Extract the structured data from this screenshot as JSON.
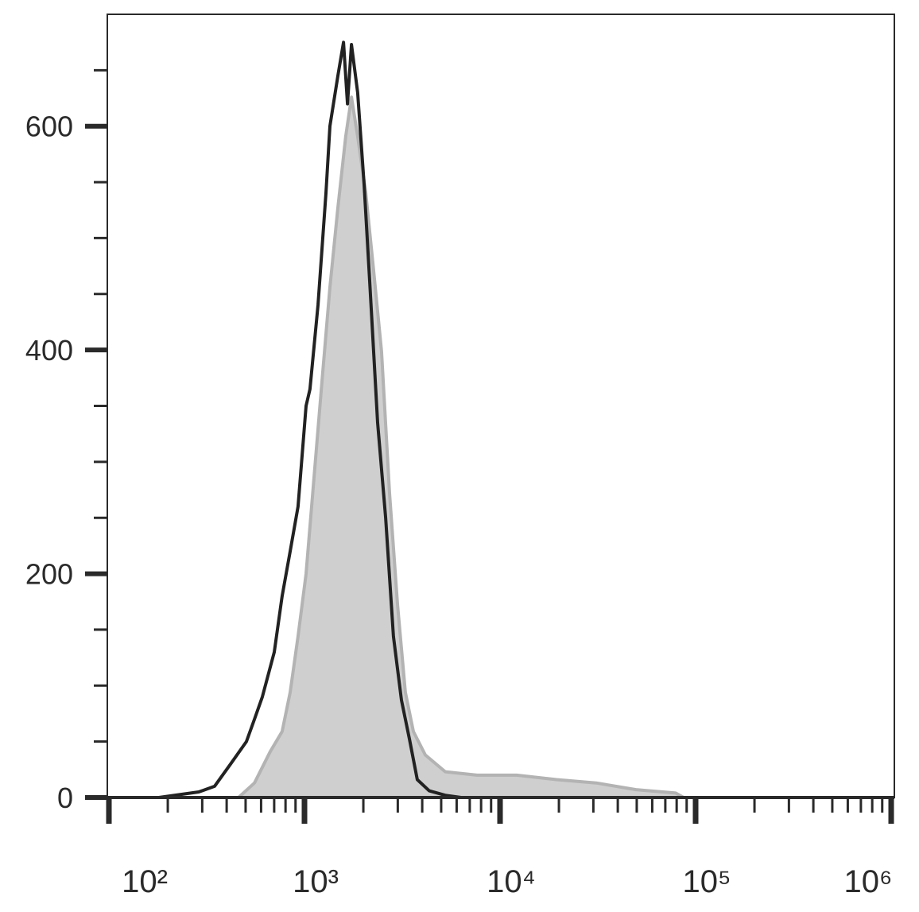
{
  "chart_data": {
    "type": "line",
    "xscale": "log",
    "xlim": [
      100,
      1000000
    ],
    "ylim": [
      0,
      700
    ],
    "xticks": [
      {
        "value": 100,
        "label": "10²"
      },
      {
        "value": 1000,
        "label": "10³"
      },
      {
        "value": 10000,
        "label": "10⁴"
      },
      {
        "value": 100000,
        "label": "10⁵"
      },
      {
        "value": 1000000,
        "label": "10⁶"
      }
    ],
    "xminorticks": [
      200,
      300,
      400,
      500,
      600,
      700,
      800,
      900,
      2000,
      3000,
      4000,
      5000,
      6000,
      7000,
      8000,
      9000,
      20000,
      30000,
      40000,
      50000,
      60000,
      70000,
      80000,
      90000,
      200000,
      300000,
      400000,
      500000,
      600000,
      700000,
      800000,
      900000
    ],
    "yticks": [
      0,
      200,
      400,
      600
    ],
    "yminorticks": [
      50,
      100,
      150,
      250,
      300,
      350,
      450,
      500,
      550,
      650
    ],
    "series": [
      {
        "color": "#b3b3b3",
        "fill": "#cfcfcf",
        "x": [
          100,
          460,
          555,
          668,
          769,
          845,
          927,
          1019,
          1119,
          1227,
          1349,
          1482,
          1626,
          1738,
          1871,
          2056,
          2259,
          2478,
          2723,
          2992,
          3281,
          3606,
          4150,
          5248,
          7621,
          12162,
          19453,
          31045,
          49545,
          79068,
          86896,
          1000000
        ],
        "values": [
          0,
          0,
          13,
          41,
          59,
          94,
          144,
          200,
          286,
          371,
          456,
          527,
          591,
          626,
          591,
          541,
          470,
          399,
          272,
          172,
          94,
          59,
          38,
          23,
          20,
          20,
          16,
          13,
          7,
          4,
          0,
          0
        ]
      },
      {
        "color": "#222222",
        "x": [
          100,
          180,
          288,
          347,
          419,
          505,
          555,
          609,
          701,
          769,
          845,
          927,
          1019,
          1067,
          1172,
          1288,
          1349,
          1482,
          1583,
          1660,
          1738,
          1871,
          2018,
          2153,
          2366,
          2600,
          2851,
          3133,
          3443,
          3776,
          4345,
          5248,
          6324,
          1000000
        ],
        "values": [
          0,
          0,
          5,
          10,
          30,
          50,
          70,
          90,
          130,
          180,
          220,
          260,
          350,
          365,
          440,
          540,
          600,
          645,
          675,
          620,
          673,
          630,
          548,
          463,
          335,
          250,
          144,
          87,
          52,
          16,
          6,
          2,
          0,
          0
        ]
      }
    ]
  }
}
